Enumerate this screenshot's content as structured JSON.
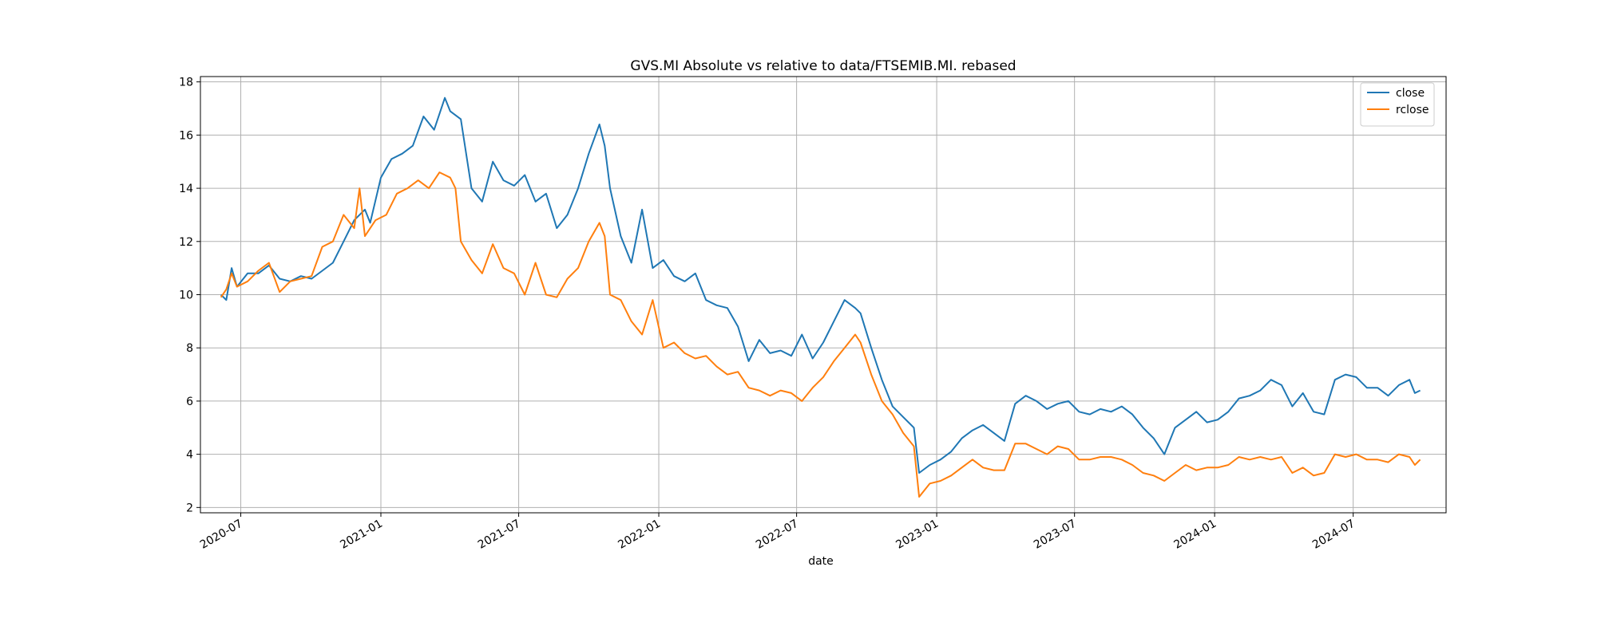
{
  "chart_data": {
    "type": "line",
    "title": "GVS.MI Absolute vs relative to data/FTSEMIB.MI. rebased",
    "xlabel": "date",
    "ylabel": "",
    "xlim": [
      "2020-05-09",
      "2024-10-31"
    ],
    "ylim": [
      1.8,
      18.2
    ],
    "yticks": [
      2,
      4,
      6,
      8,
      10,
      12,
      14,
      16,
      18
    ],
    "xticks": [
      "2020-07",
      "2021-01",
      "2021-07",
      "2022-01",
      "2022-07",
      "2023-01",
      "2023-07",
      "2024-01",
      "2024-07"
    ],
    "grid": true,
    "legend_position": "upper-right",
    "series": [
      {
        "name": "close",
        "color": "#1f77b4",
        "points": [
          [
            "2020-06-05",
            10.0
          ],
          [
            "2020-06-12",
            9.8
          ],
          [
            "2020-06-19",
            11.0
          ],
          [
            "2020-06-26",
            10.3
          ],
          [
            "2020-07-10",
            10.8
          ],
          [
            "2020-07-24",
            10.8
          ],
          [
            "2020-08-07",
            11.1
          ],
          [
            "2020-08-21",
            10.6
          ],
          [
            "2020-09-04",
            10.5
          ],
          [
            "2020-09-18",
            10.7
          ],
          [
            "2020-10-02",
            10.6
          ],
          [
            "2020-10-16",
            10.9
          ],
          [
            "2020-10-30",
            11.2
          ],
          [
            "2020-11-13",
            12.0
          ],
          [
            "2020-11-27",
            12.8
          ],
          [
            "2020-12-11",
            13.2
          ],
          [
            "2020-12-18",
            12.7
          ],
          [
            "2021-01-01",
            14.4
          ],
          [
            "2021-01-15",
            15.1
          ],
          [
            "2021-01-29",
            15.3
          ],
          [
            "2021-02-12",
            15.6
          ],
          [
            "2021-02-26",
            16.7
          ],
          [
            "2021-03-12",
            16.2
          ],
          [
            "2021-03-26",
            17.4
          ],
          [
            "2021-04-02",
            16.9
          ],
          [
            "2021-04-16",
            16.6
          ],
          [
            "2021-04-30",
            14.0
          ],
          [
            "2021-05-14",
            13.5
          ],
          [
            "2021-05-28",
            15.0
          ],
          [
            "2021-06-11",
            14.3
          ],
          [
            "2021-06-25",
            14.1
          ],
          [
            "2021-07-09",
            14.5
          ],
          [
            "2021-07-23",
            13.5
          ],
          [
            "2021-08-06",
            13.8
          ],
          [
            "2021-08-20",
            12.5
          ],
          [
            "2021-09-03",
            13.0
          ],
          [
            "2021-09-17",
            14.0
          ],
          [
            "2021-10-01",
            15.3
          ],
          [
            "2021-10-15",
            16.4
          ],
          [
            "2021-10-22",
            15.6
          ],
          [
            "2021-10-29",
            14.0
          ],
          [
            "2021-11-12",
            12.2
          ],
          [
            "2021-11-26",
            11.2
          ],
          [
            "2021-12-10",
            13.2
          ],
          [
            "2021-12-24",
            11.0
          ],
          [
            "2022-01-07",
            11.3
          ],
          [
            "2022-01-21",
            10.7
          ],
          [
            "2022-02-04",
            10.5
          ],
          [
            "2022-02-18",
            10.8
          ],
          [
            "2022-03-04",
            9.8
          ],
          [
            "2022-03-18",
            9.6
          ],
          [
            "2022-04-01",
            9.5
          ],
          [
            "2022-04-15",
            8.8
          ],
          [
            "2022-04-29",
            7.5
          ],
          [
            "2022-05-13",
            8.3
          ],
          [
            "2022-05-27",
            7.8
          ],
          [
            "2022-06-10",
            7.9
          ],
          [
            "2022-06-24",
            7.7
          ],
          [
            "2022-07-08",
            8.5
          ],
          [
            "2022-07-22",
            7.6
          ],
          [
            "2022-08-05",
            8.2
          ],
          [
            "2022-08-19",
            9.0
          ],
          [
            "2022-09-02",
            9.8
          ],
          [
            "2022-09-16",
            9.5
          ],
          [
            "2022-09-23",
            9.3
          ],
          [
            "2022-10-07",
            8.0
          ],
          [
            "2022-10-21",
            6.8
          ],
          [
            "2022-11-04",
            5.8
          ],
          [
            "2022-11-18",
            5.4
          ],
          [
            "2022-12-02",
            5.0
          ],
          [
            "2022-12-09",
            3.3
          ],
          [
            "2022-12-23",
            3.6
          ],
          [
            "2023-01-06",
            3.8
          ],
          [
            "2023-01-20",
            4.1
          ],
          [
            "2023-02-03",
            4.6
          ],
          [
            "2023-02-17",
            4.9
          ],
          [
            "2023-03-03",
            5.1
          ],
          [
            "2023-03-17",
            4.8
          ],
          [
            "2023-03-31",
            4.5
          ],
          [
            "2023-04-14",
            5.9
          ],
          [
            "2023-04-28",
            6.2
          ],
          [
            "2023-05-12",
            6.0
          ],
          [
            "2023-05-26",
            5.7
          ],
          [
            "2023-06-09",
            5.9
          ],
          [
            "2023-06-23",
            6.0
          ],
          [
            "2023-07-07",
            5.6
          ],
          [
            "2023-07-21",
            5.5
          ],
          [
            "2023-08-04",
            5.7
          ],
          [
            "2023-08-18",
            5.6
          ],
          [
            "2023-09-01",
            5.8
          ],
          [
            "2023-09-15",
            5.5
          ],
          [
            "2023-09-29",
            5.0
          ],
          [
            "2023-10-13",
            4.6
          ],
          [
            "2023-10-27",
            4.0
          ],
          [
            "2023-11-10",
            5.0
          ],
          [
            "2023-11-24",
            5.3
          ],
          [
            "2023-12-08",
            5.6
          ],
          [
            "2023-12-22",
            5.2
          ],
          [
            "2024-01-05",
            5.3
          ],
          [
            "2024-01-19",
            5.6
          ],
          [
            "2024-02-02",
            6.1
          ],
          [
            "2024-02-16",
            6.2
          ],
          [
            "2024-03-01",
            6.4
          ],
          [
            "2024-03-15",
            6.8
          ],
          [
            "2024-03-29",
            6.6
          ],
          [
            "2024-04-12",
            5.8
          ],
          [
            "2024-04-26",
            6.3
          ],
          [
            "2024-05-10",
            5.6
          ],
          [
            "2024-05-24",
            5.5
          ],
          [
            "2024-06-07",
            6.8
          ],
          [
            "2024-06-21",
            7.0
          ],
          [
            "2024-07-05",
            6.9
          ],
          [
            "2024-07-19",
            6.5
          ],
          [
            "2024-08-02",
            6.5
          ],
          [
            "2024-08-16",
            6.2
          ],
          [
            "2024-08-30",
            6.6
          ],
          [
            "2024-09-13",
            6.8
          ],
          [
            "2024-09-20",
            6.3
          ],
          [
            "2024-09-27",
            6.4
          ]
        ]
      },
      {
        "name": "rclose",
        "color": "#ff7f0e",
        "points": [
          [
            "2020-06-05",
            9.9
          ],
          [
            "2020-06-12",
            10.2
          ],
          [
            "2020-06-19",
            10.8
          ],
          [
            "2020-06-26",
            10.3
          ],
          [
            "2020-07-10",
            10.5
          ],
          [
            "2020-07-24",
            10.9
          ],
          [
            "2020-08-07",
            11.2
          ],
          [
            "2020-08-21",
            10.1
          ],
          [
            "2020-09-04",
            10.5
          ],
          [
            "2020-09-18",
            10.6
          ],
          [
            "2020-10-02",
            10.7
          ],
          [
            "2020-10-16",
            11.8
          ],
          [
            "2020-10-30",
            12.0
          ],
          [
            "2020-11-13",
            13.0
          ],
          [
            "2020-11-27",
            12.5
          ],
          [
            "2020-12-04",
            14.0
          ],
          [
            "2020-12-11",
            12.2
          ],
          [
            "2020-12-25",
            12.8
          ],
          [
            "2021-01-08",
            13.0
          ],
          [
            "2021-01-22",
            13.8
          ],
          [
            "2021-02-05",
            14.0
          ],
          [
            "2021-02-19",
            14.3
          ],
          [
            "2021-03-05",
            14.0
          ],
          [
            "2021-03-19",
            14.6
          ],
          [
            "2021-04-02",
            14.4
          ],
          [
            "2021-04-09",
            14.0
          ],
          [
            "2021-04-16",
            12.0
          ],
          [
            "2021-04-30",
            11.3
          ],
          [
            "2021-05-14",
            10.8
          ],
          [
            "2021-05-28",
            11.9
          ],
          [
            "2021-06-11",
            11.0
          ],
          [
            "2021-06-25",
            10.8
          ],
          [
            "2021-07-09",
            10.0
          ],
          [
            "2021-07-23",
            11.2
          ],
          [
            "2021-08-06",
            10.0
          ],
          [
            "2021-08-20",
            9.9
          ],
          [
            "2021-09-03",
            10.6
          ],
          [
            "2021-09-17",
            11.0
          ],
          [
            "2021-10-01",
            12.0
          ],
          [
            "2021-10-15",
            12.7
          ],
          [
            "2021-10-22",
            12.2
          ],
          [
            "2021-10-29",
            10.0
          ],
          [
            "2021-11-12",
            9.8
          ],
          [
            "2021-11-26",
            9.0
          ],
          [
            "2021-12-10",
            8.5
          ],
          [
            "2021-12-24",
            9.8
          ],
          [
            "2022-01-07",
            8.0
          ],
          [
            "2022-01-21",
            8.2
          ],
          [
            "2022-02-04",
            7.8
          ],
          [
            "2022-02-18",
            7.6
          ],
          [
            "2022-03-04",
            7.7
          ],
          [
            "2022-03-18",
            7.3
          ],
          [
            "2022-04-01",
            7.0
          ],
          [
            "2022-04-15",
            7.1
          ],
          [
            "2022-04-29",
            6.5
          ],
          [
            "2022-05-13",
            6.4
          ],
          [
            "2022-05-27",
            6.2
          ],
          [
            "2022-06-10",
            6.4
          ],
          [
            "2022-06-24",
            6.3
          ],
          [
            "2022-07-08",
            6.0
          ],
          [
            "2022-07-22",
            6.5
          ],
          [
            "2022-08-05",
            6.9
          ],
          [
            "2022-08-19",
            7.5
          ],
          [
            "2022-09-02",
            8.0
          ],
          [
            "2022-09-16",
            8.5
          ],
          [
            "2022-09-23",
            8.2
          ],
          [
            "2022-10-07",
            7.0
          ],
          [
            "2022-10-21",
            6.0
          ],
          [
            "2022-11-04",
            5.5
          ],
          [
            "2022-11-18",
            4.8
          ],
          [
            "2022-12-02",
            4.3
          ],
          [
            "2022-12-09",
            2.4
          ],
          [
            "2022-12-23",
            2.9
          ],
          [
            "2023-01-06",
            3.0
          ],
          [
            "2023-01-20",
            3.2
          ],
          [
            "2023-02-03",
            3.5
          ],
          [
            "2023-02-17",
            3.8
          ],
          [
            "2023-03-03",
            3.5
          ],
          [
            "2023-03-17",
            3.4
          ],
          [
            "2023-03-31",
            3.4
          ],
          [
            "2023-04-14",
            4.4
          ],
          [
            "2023-04-28",
            4.4
          ],
          [
            "2023-05-12",
            4.2
          ],
          [
            "2023-05-26",
            4.0
          ],
          [
            "2023-06-09",
            4.3
          ],
          [
            "2023-06-23",
            4.2
          ],
          [
            "2023-07-07",
            3.8
          ],
          [
            "2023-07-21",
            3.8
          ],
          [
            "2023-08-04",
            3.9
          ],
          [
            "2023-08-18",
            3.9
          ],
          [
            "2023-09-01",
            3.8
          ],
          [
            "2023-09-15",
            3.6
          ],
          [
            "2023-09-29",
            3.3
          ],
          [
            "2023-10-13",
            3.2
          ],
          [
            "2023-10-27",
            3.0
          ],
          [
            "2023-11-10",
            3.3
          ],
          [
            "2023-11-24",
            3.6
          ],
          [
            "2023-12-08",
            3.4
          ],
          [
            "2023-12-22",
            3.5
          ],
          [
            "2024-01-05",
            3.5
          ],
          [
            "2024-01-19",
            3.6
          ],
          [
            "2024-02-02",
            3.9
          ],
          [
            "2024-02-16",
            3.8
          ],
          [
            "2024-03-01",
            3.9
          ],
          [
            "2024-03-15",
            3.8
          ],
          [
            "2024-03-29",
            3.9
          ],
          [
            "2024-04-12",
            3.3
          ],
          [
            "2024-04-26",
            3.5
          ],
          [
            "2024-05-10",
            3.2
          ],
          [
            "2024-05-24",
            3.3
          ],
          [
            "2024-06-07",
            4.0
          ],
          [
            "2024-06-21",
            3.9
          ],
          [
            "2024-07-05",
            4.0
          ],
          [
            "2024-07-19",
            3.8
          ],
          [
            "2024-08-02",
            3.8
          ],
          [
            "2024-08-16",
            3.7
          ],
          [
            "2024-08-30",
            4.0
          ],
          [
            "2024-09-13",
            3.9
          ],
          [
            "2024-09-20",
            3.6
          ],
          [
            "2024-09-27",
            3.8
          ]
        ]
      }
    ]
  }
}
